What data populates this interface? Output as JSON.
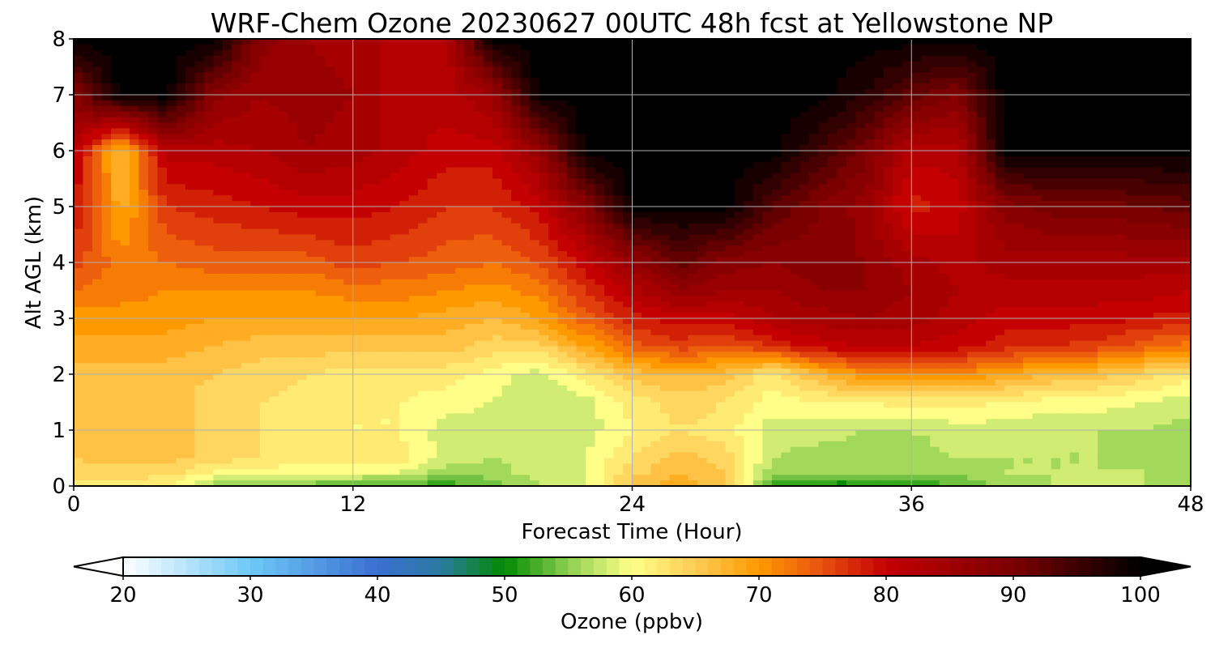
{
  "chart_data": {
    "type": "heatmap",
    "title": "WRF-Chem Ozone  20230627 00UTC 48h fcst at Yellowstone NP",
    "xlabel": "Forecast Time (Hour)",
    "ylabel": "Alt AGL (km)",
    "xlim": [
      0,
      48
    ],
    "ylim": [
      0,
      8
    ],
    "xticks": [
      "0",
      "12",
      "24",
      "36",
      "48"
    ],
    "yticks": [
      "0",
      "1",
      "2",
      "3",
      "4",
      "5",
      "6",
      "7",
      "8"
    ],
    "grid": true,
    "colorbar": {
      "label": "Ozone  (ppbv)",
      "range": [
        20,
        100
      ],
      "ticks": [
        "20",
        "30",
        "40",
        "50",
        "60",
        "70",
        "80",
        "90",
        "100"
      ],
      "extend": "both",
      "stops": [
        {
          "v": 20,
          "c": "#ffffff"
        },
        {
          "v": 30,
          "c": "#6ec8f8"
        },
        {
          "v": 40,
          "c": "#3a6fd0"
        },
        {
          "v": 45,
          "c": "#2a7aa0"
        },
        {
          "v": 50,
          "c": "#008a00"
        },
        {
          "v": 55,
          "c": "#8cd050"
        },
        {
          "v": 60,
          "c": "#ffff88"
        },
        {
          "v": 65,
          "c": "#ffcc55"
        },
        {
          "v": 70,
          "c": "#ff9900"
        },
        {
          "v": 75,
          "c": "#e85010"
        },
        {
          "v": 80,
          "c": "#c40000"
        },
        {
          "v": 90,
          "c": "#7a0000"
        },
        {
          "v": 100,
          "c": "#000000"
        }
      ]
    },
    "x_hours": [
      0,
      2,
      4,
      6,
      8,
      10,
      12,
      14,
      16,
      18,
      20,
      22,
      24,
      26,
      28,
      30,
      32,
      34,
      36,
      38,
      40,
      42,
      44,
      46,
      48
    ],
    "y_km": [
      0,
      0.25,
      0.5,
      1,
      1.5,
      2,
      2.5,
      3,
      3.5,
      4,
      5,
      6,
      7,
      8
    ],
    "z_ppbv": [
      [
        62,
        62,
        61,
        56,
        55,
        54,
        53,
        52,
        52,
        54,
        57,
        59,
        66,
        68,
        66,
        52,
        50,
        50,
        51,
        53,
        56,
        57,
        57,
        57,
        56
      ],
      [
        64,
        64,
        64,
        61,
        60,
        60,
        60,
        59,
        56,
        56,
        58,
        59,
        64,
        67,
        65,
        56,
        55,
        55,
        55,
        56,
        57,
        57,
        57,
        57,
        56
      ],
      [
        65,
        66,
        66,
        64,
        63,
        62,
        62,
        62,
        58,
        57,
        58,
        59,
        63,
        66,
        64,
        57,
        56,
        56,
        56,
        57,
        57,
        57,
        57,
        56,
        55
      ],
      [
        65,
        66,
        66,
        64,
        63,
        62,
        61,
        61,
        58,
        58,
        57,
        58,
        61,
        63,
        62,
        58,
        58,
        57,
        57,
        58,
        58,
        57,
        57,
        57,
        56
      ],
      [
        65,
        66,
        66,
        64,
        63,
        62,
        61,
        61,
        60,
        59,
        57,
        58,
        62,
        64,
        63,
        60,
        61,
        61,
        62,
        62,
        61,
        60,
        60,
        59,
        58
      ],
      [
        66,
        66,
        66,
        65,
        64,
        63,
        62,
        62,
        62,
        60,
        58,
        62,
        66,
        67,
        66,
        62,
        67,
        71,
        72,
        71,
        69,
        67,
        66,
        64,
        62
      ],
      [
        68,
        68,
        68,
        67,
        66,
        66,
        66,
        66,
        66,
        64,
        64,
        69,
        74,
        76,
        75,
        77,
        80,
        81,
        81,
        80,
        78,
        77,
        76,
        74,
        72
      ],
      [
        70,
        70,
        70,
        69,
        69,
        69,
        69,
        69,
        68,
        67,
        69,
        74,
        78,
        80,
        80,
        83,
        84,
        85,
        84,
        82,
        80,
        80,
        80,
        79,
        78
      ],
      [
        73,
        72,
        71,
        71,
        71,
        71,
        72,
        72,
        71,
        70,
        72,
        77,
        82,
        87,
        85,
        85,
        87,
        87,
        85,
        83,
        82,
        82,
        82,
        82,
        81
      ],
      [
        76,
        72,
        73,
        74,
        74,
        74,
        76,
        75,
        74,
        73,
        75,
        80,
        86,
        92,
        88,
        87,
        88,
        87,
        84,
        82,
        84,
        84,
        84,
        84,
        84
      ],
      [
        79,
        68,
        77,
        78,
        79,
        80,
        80,
        79,
        77,
        77,
        80,
        88,
        100,
        100,
        100,
        93,
        89,
        86,
        78,
        80,
        88,
        90,
        90,
        91,
        92
      ],
      [
        82,
        66,
        82,
        82,
        83,
        85,
        84,
        82,
        80,
        80,
        86,
        100,
        100,
        100,
        100,
        100,
        95,
        90,
        82,
        82,
        100,
        100,
        100,
        100,
        100
      ],
      [
        88,
        100,
        100,
        88,
        85,
        86,
        85,
        82,
        82,
        85,
        100,
        100,
        100,
        100,
        100,
        100,
        100,
        97,
        92,
        89,
        100,
        100,
        100,
        100,
        100
      ],
      [
        100,
        100,
        100,
        100,
        88,
        85,
        84,
        82,
        82,
        100,
        100,
        100,
        100,
        100,
        100,
        100,
        100,
        100,
        100,
        100,
        100,
        100,
        100,
        100,
        100
      ]
    ]
  }
}
